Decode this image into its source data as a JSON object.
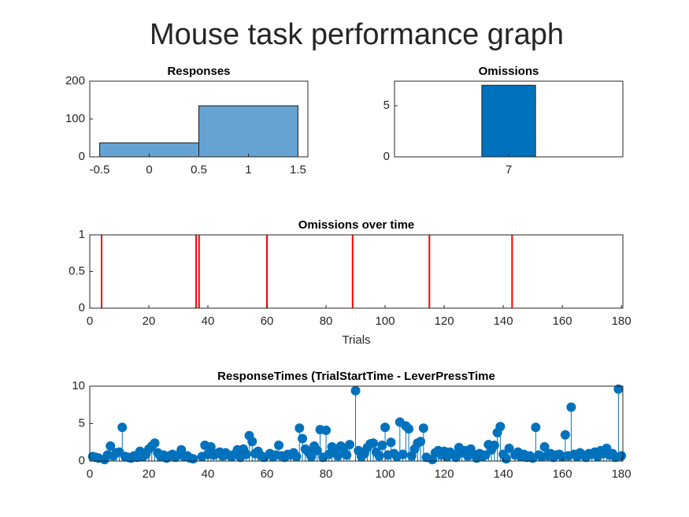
{
  "title": "Mouse task performance graph",
  "chart_data": [
    {
      "type": "histogram",
      "title": "Responses",
      "bins": [
        -0.5,
        0.5,
        1.5
      ],
      "counts": [
        37,
        135
      ],
      "color": "#66a3d2",
      "xlim": [
        -0.6,
        1.6
      ],
      "xticks": [
        -0.5,
        0,
        0.5,
        1,
        1.5
      ],
      "ylim": [
        0,
        200
      ],
      "yticks": [
        0,
        100,
        200
      ]
    },
    {
      "type": "bar",
      "title": "Omissions",
      "categories": [
        "7"
      ],
      "values": [
        7
      ],
      "color": "#0072bd",
      "ylim": [
        0,
        7.4
      ],
      "yticks": [
        0,
        5
      ]
    },
    {
      "type": "event-lines",
      "title": "Omissions over time",
      "xlabel": "Trials",
      "color": "#ff0000",
      "x": [
        4,
        36,
        37,
        60,
        89,
        115,
        143
      ],
      "values": [
        1,
        1,
        1,
        1,
        1,
        1,
        1
      ],
      "xlim": [
        0,
        180.5
      ],
      "xticks": [
        0,
        20,
        40,
        60,
        80,
        100,
        120,
        140,
        160,
        180
      ],
      "ylim": [
        0,
        1
      ],
      "yticks": [
        0,
        0.5,
        1
      ]
    },
    {
      "type": "stem",
      "title": "ResponseTimes (TrialStartTime - LeverPressTime",
      "color": "#0072bd",
      "x": [
        1,
        2,
        3,
        4,
        5,
        6,
        7,
        8,
        9,
        10,
        11,
        12,
        13,
        14,
        15,
        16,
        17,
        18,
        19,
        20,
        21,
        22,
        23,
        24,
        25,
        26,
        27,
        28,
        29,
        30,
        31,
        32,
        33,
        34,
        35,
        36,
        37,
        38,
        39,
        40,
        41,
        42,
        43,
        44,
        45,
        46,
        47,
        48,
        49,
        50,
        51,
        52,
        53,
        54,
        55,
        56,
        57,
        58,
        59,
        60,
        61,
        62,
        63,
        64,
        65,
        66,
        67,
        68,
        69,
        70,
        71,
        72,
        73,
        74,
        75,
        76,
        77,
        78,
        79,
        80,
        81,
        82,
        83,
        84,
        85,
        86,
        87,
        88,
        89,
        90,
        91,
        92,
        93,
        94,
        95,
        96,
        97,
        98,
        99,
        100,
        101,
        102,
        103,
        104,
        105,
        106,
        107,
        108,
        109,
        110,
        111,
        112,
        113,
        114,
        115,
        116,
        117,
        118,
        119,
        120,
        121,
        122,
        123,
        124,
        125,
        126,
        127,
        128,
        129,
        130,
        131,
        132,
        133,
        134,
        135,
        136,
        137,
        138,
        139,
        140,
        141,
        142,
        143,
        144,
        145,
        146,
        147,
        148,
        149,
        150,
        151,
        152,
        153,
        154,
        155,
        156,
        157,
        158,
        159,
        160,
        161,
        162,
        163,
        164,
        165,
        166,
        167,
        168,
        169,
        170,
        171,
        172,
        173,
        174,
        175,
        176,
        177,
        178,
        179,
        180
      ],
      "values": [
        0.6,
        0.5,
        0.4,
        null,
        0.2,
        0.8,
        2.0,
        0.7,
        1.1,
        1.2,
        4.5,
        0.6,
        0.5,
        0.4,
        0.7,
        0.5,
        1.3,
        0.6,
        0.9,
        1.6,
        2.0,
        2.4,
        1.1,
        0.6,
        0.8,
        0.4,
        0.7,
        0.9,
        0.5,
        0.8,
        1.5,
        0.6,
        0.7,
        0.4,
        0.3,
        null,
        null,
        0.6,
        2.1,
        0.9,
        1.9,
        0.8,
        1.0,
        1.2,
        0.7,
        1.1,
        0.8,
        0.6,
        0.9,
        1.5,
        0.5,
        1.6,
        0.9,
        3.4,
        2.6,
        1.0,
        1.3,
        0.7,
        0.5,
        null,
        1.0,
        0.6,
        0.8,
        2.1,
        0.7,
        0.5,
        0.9,
        0.8,
        1.1,
        0.6,
        4.4,
        3.0,
        1.6,
        1.2,
        0.6,
        2.0,
        1.4,
        4.2,
        0.5,
        4.1,
        0.9,
        1.9,
        1.1,
        0.7,
        2.0,
        1.6,
        0.8,
        2.2,
        null,
        9.4,
        1.4,
        0.6,
        1.0,
        1.8,
        2.3,
        2.4,
        1.2,
        0.7,
        2.1,
        4.5,
        0.8,
        2.5,
        1.0,
        0.6,
        5.2,
        0.9,
        4.7,
        4.3,
        0.7,
        1.6,
        2.4,
        2.6,
        4.4,
        0.5,
        null,
        0.2,
        1.1,
        1.4,
        0.8,
        1.3,
        0.6,
        1.2,
        0.9,
        0.5,
        1.8,
        1.1,
        1.4,
        0.7,
        1.6,
        0.9,
        0.4,
        1.0,
        0.6,
        0.8,
        2.2,
        1.5,
        2.1,
        3.8,
        4.6,
        0.9,
        0.3,
        1.7,
        null,
        0.8,
        1.2,
        0.6,
        0.9,
        0.5,
        0.7,
        0.4,
        4.5,
        0.8,
        0.6,
        1.9,
        0.7,
        1.0,
        0.5,
        0.8,
        0.9,
        0.6,
        3.5,
        0.7,
        7.2,
        0.9,
        0.6,
        1.1,
        0.8,
        0.5,
        1.0,
        0.9,
        1.2,
        0.6,
        1.4,
        1.0,
        1.7,
        0.8,
        1.0,
        0.5,
        9.6,
        0.7
      ],
      "xlim": [
        0,
        180.5
      ],
      "xticks": [
        0,
        20,
        40,
        60,
        80,
        100,
        120,
        140,
        160,
        180
      ],
      "ylim": [
        0,
        10
      ],
      "yticks": [
        0,
        5,
        10
      ]
    }
  ]
}
